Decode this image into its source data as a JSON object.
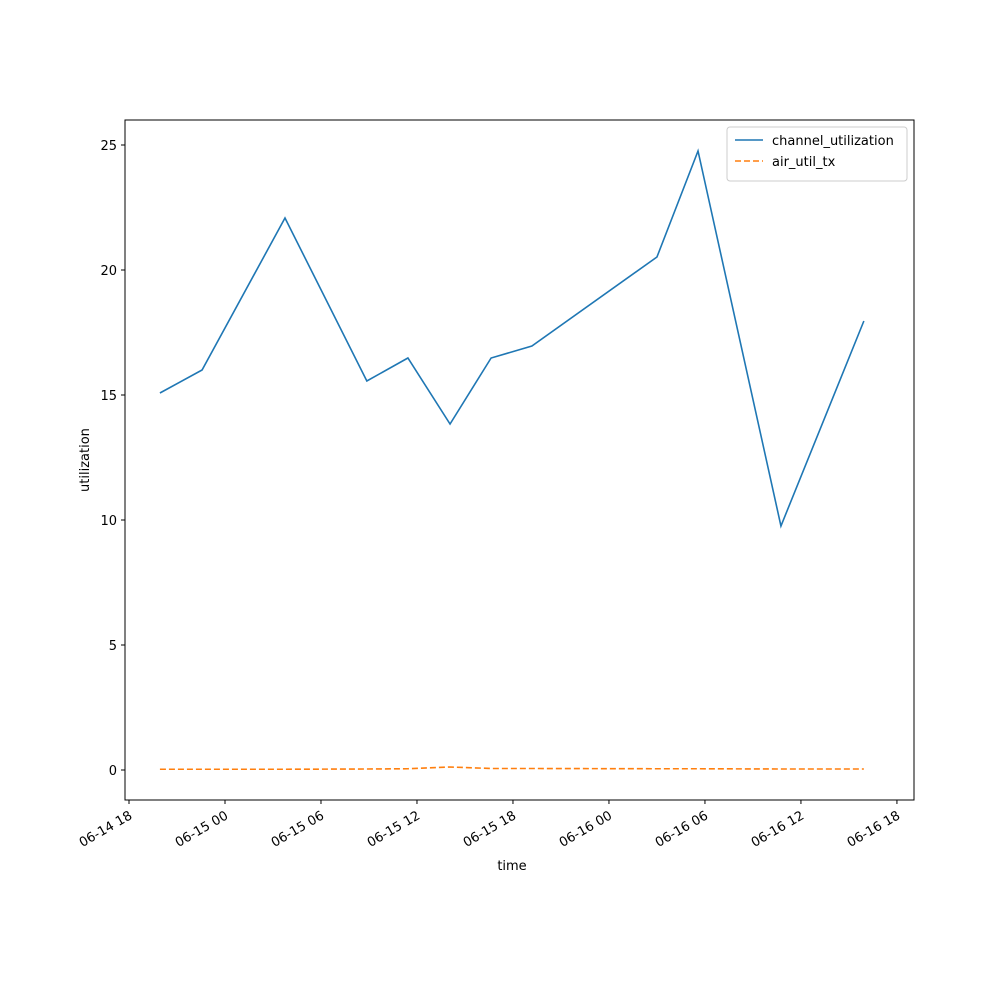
{
  "chart_data": {
    "type": "line",
    "xlabel": "time",
    "ylabel": "utilization",
    "x": [
      "06-14 19:56",
      "06-14 22:34",
      "06-15 03:45",
      "06-15 08:52",
      "06-15 11:26",
      "06-15 14:04",
      "06-15 16:38",
      "06-15 19:11",
      "06-16 03:00",
      "06-16 05:34",
      "06-16 10:45",
      "06-16 15:56"
    ],
    "series": [
      {
        "name": "channel_utilization",
        "color": "#1f77b4",
        "dash": "solid",
        "values": [
          15.08,
          16.0,
          22.08,
          15.56,
          16.48,
          13.84,
          16.48,
          16.96,
          20.52,
          24.76,
          9.76,
          17.96
        ]
      },
      {
        "name": "air_util_tx",
        "color": "#ff7f0e",
        "dash": "dashed",
        "values": [
          0.03,
          0.03,
          0.03,
          0.04,
          0.05,
          0.12,
          0.06,
          0.06,
          0.05,
          0.05,
          0.04,
          0.04
        ]
      }
    ],
    "xlim": [
      "06-14 17:45",
      "06-16 19:04"
    ],
    "xticks": [
      {
        "value": "06-14 18:00",
        "label": "06-14 18"
      },
      {
        "value": "06-15 00:00",
        "label": "06-15 00"
      },
      {
        "value": "06-15 06:00",
        "label": "06-15 06"
      },
      {
        "value": "06-15 12:00",
        "label": "06-15 12"
      },
      {
        "value": "06-15 18:00",
        "label": "06-15 18"
      },
      {
        "value": "06-16 00:00",
        "label": "06-16 00"
      },
      {
        "value": "06-16 06:00",
        "label": "06-16 06"
      },
      {
        "value": "06-16 12:00",
        "label": "06-16 12"
      },
      {
        "value": "06-16 18:00",
        "label": "06-16 18"
      }
    ],
    "ylim": [
      -1.2,
      26.0
    ],
    "yticks": [
      0,
      5,
      10,
      15,
      20,
      25
    ],
    "grid": false,
    "legend": "upper right"
  }
}
